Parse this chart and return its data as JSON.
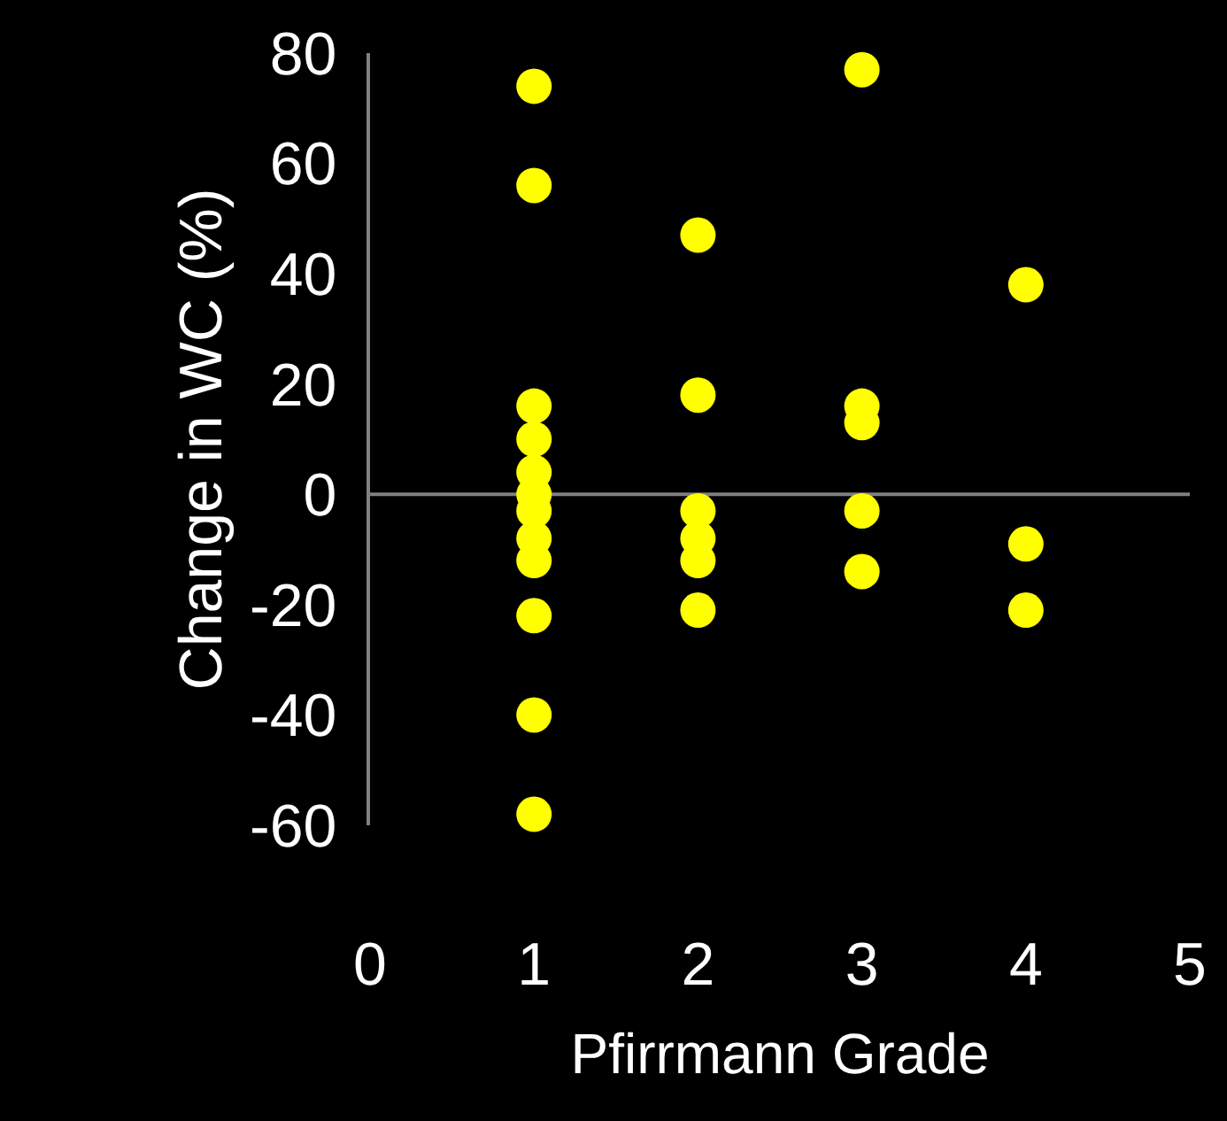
{
  "chart_data": {
    "type": "scatter",
    "xlabel": "Pfirrmann Grade",
    "ylabel": "Change in WC (%)",
    "xlim": [
      0,
      5
    ],
    "xticks": [
      0,
      1,
      2,
      3,
      4,
      5
    ],
    "ylim": [
      -60,
      80
    ],
    "yticks": [
      -60,
      -40,
      -20,
      0,
      20,
      40,
      60,
      80
    ],
    "grid": false,
    "marker": "circle",
    "ref_lines": [
      {
        "axis": "y",
        "value": 0,
        "color": "#808080"
      }
    ],
    "series": [
      {
        "color": "#ffff00",
        "x": [
          1,
          1,
          1,
          1,
          1,
          1,
          1,
          1,
          1,
          1,
          1,
          1,
          2,
          2,
          2,
          2,
          2,
          2,
          3,
          3,
          3,
          3,
          3,
          4,
          4,
          4
        ],
        "values": [
          74,
          56,
          16,
          10,
          4,
          0,
          -3,
          -8,
          -12,
          -22,
          -40,
          -58,
          47,
          18,
          -3,
          -8,
          -12,
          -21,
          77,
          16,
          13,
          -3,
          -14,
          38,
          -9,
          -21
        ]
      }
    ]
  }
}
